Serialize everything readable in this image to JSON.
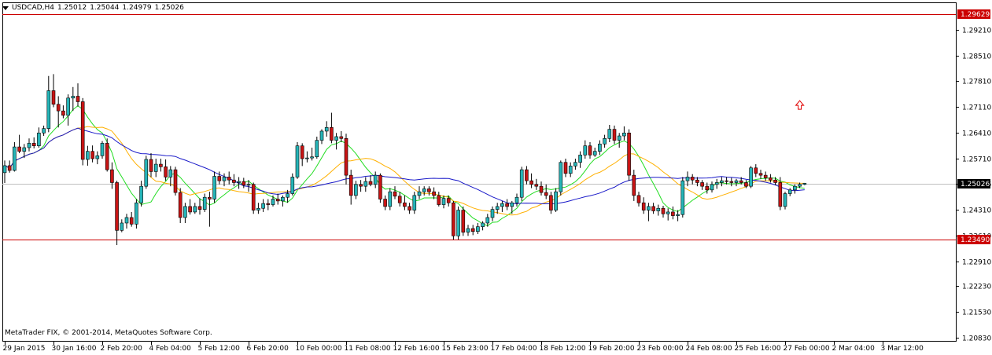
{
  "header": {
    "symbol": "USDCAD,H4",
    "open": "1.25012",
    "high": "1.25044",
    "low": "1.24979",
    "close": "1.25026"
  },
  "copyright": "MetaTrader FIX, © 2001-2014, MetaQuotes Software Corp.",
  "colors": {
    "bull": "#26b5b8",
    "bear": "#c81414",
    "ma_fast": "#22dd22",
    "ma_mid": "#ffb000",
    "ma_slow": "#1818c8",
    "level_line": "#cc0000",
    "arrow": "#e00000"
  },
  "chart_data": {
    "type": "candlestick",
    "symbol": "USDCAD",
    "timeframe": "H4",
    "y_range": [
      1.2083,
      1.2991
    ],
    "price_ticks": [
      "1.29210",
      "1.28510",
      "1.27810",
      "1.27110",
      "1.26410",
      "1.25710",
      "1.25026",
      "1.24310",
      "1.23610",
      "1.22910",
      "1.22230",
      "1.21530",
      "1.20830"
    ],
    "price_tick_values": [
      1.2921,
      1.2851,
      1.2781,
      1.2711,
      1.2641,
      1.2571,
      1.25026,
      1.2431,
      1.2361,
      1.2291,
      1.2223,
      1.2153,
      1.2083
    ],
    "time_labels": [
      "29 Jan 2015",
      "30 Jan 16:00",
      "2 Feb 20:00",
      "4 Feb 04:00",
      "5 Feb 12:00",
      "6 Feb 20:00",
      "10 Feb 00:00",
      "11 Feb 08:00",
      "12 Feb 16:00",
      "15 Feb 23:00",
      "17 Feb 04:00",
      "18 Feb 12:00",
      "19 Feb 20:00",
      "23 Feb 00:00",
      "24 Feb 08:00",
      "25 Feb 16:00",
      "27 Feb 00:00",
      "2 Mar 04:00",
      "3 Mar 12:00"
    ],
    "time_label_bars": [
      0,
      10,
      20,
      30,
      40,
      50,
      60,
      70,
      80,
      90,
      100,
      110,
      120,
      130,
      140,
      150,
      160,
      170,
      180
    ],
    "current_price": 1.25026,
    "current_price_label": "1.25026",
    "high_level": 1.29629,
    "high_level_label": "1.29629",
    "low_level": 1.2349,
    "low_level_label": "1.23490",
    "arrow_marker": {
      "bar": 163,
      "price": 1.2715
    },
    "candles": [
      [
        1.2532,
        1.2565,
        1.2504,
        1.2551
      ],
      [
        1.2551,
        1.2565,
        1.2532,
        1.2538
      ],
      [
        1.2538,
        1.2615,
        1.2535,
        1.2602
      ],
      [
        1.2602,
        1.2635,
        1.2585,
        1.259
      ],
      [
        1.259,
        1.261,
        1.2572,
        1.26
      ],
      [
        1.26,
        1.2625,
        1.259,
        1.2612
      ],
      [
        1.2612,
        1.2628,
        1.2598,
        1.2605
      ],
      [
        1.2605,
        1.2655,
        1.26,
        1.264
      ],
      [
        1.264,
        1.266,
        1.2632,
        1.2652
      ],
      [
        1.2652,
        1.2795,
        1.2642,
        1.2755
      ],
      [
        1.2755,
        1.28,
        1.271,
        1.2718
      ],
      [
        1.2718,
        1.274,
        1.2655,
        1.27
      ],
      [
        1.27,
        1.2715,
        1.268,
        1.2688
      ],
      [
        1.2688,
        1.2745,
        1.266,
        1.2735
      ],
      [
        1.2735,
        1.2765,
        1.27,
        1.274
      ],
      [
        1.274,
        1.2775,
        1.2712,
        1.2725
      ],
      [
        1.2725,
        1.2735,
        1.2552,
        1.2568
      ],
      [
        1.2568,
        1.2605,
        1.2551,
        1.259
      ],
      [
        1.259,
        1.2606,
        1.256,
        1.257
      ],
      [
        1.257,
        1.259,
        1.2555,
        1.2578
      ],
      [
        1.2578,
        1.2618,
        1.257,
        1.2612
      ],
      [
        1.2612,
        1.2625,
        1.2535,
        1.254
      ],
      [
        1.254,
        1.256,
        1.2488,
        1.2505
      ],
      [
        1.2505,
        1.251,
        1.2335,
        1.2375
      ],
      [
        1.2375,
        1.2405,
        1.237,
        1.2395
      ],
      [
        1.2395,
        1.242,
        1.238,
        1.241
      ],
      [
        1.241,
        1.2425,
        1.2385,
        1.2392
      ],
      [
        1.2392,
        1.246,
        1.238,
        1.245
      ],
      [
        1.245,
        1.251,
        1.244,
        1.2495
      ],
      [
        1.2495,
        1.2578,
        1.2488,
        1.2568
      ],
      [
        1.2568,
        1.2585,
        1.252,
        1.2535
      ],
      [
        1.2535,
        1.257,
        1.252,
        1.2555
      ],
      [
        1.2555,
        1.257,
        1.2535,
        1.2548
      ],
      [
        1.2548,
        1.2568,
        1.251,
        1.252
      ],
      [
        1.252,
        1.255,
        1.2495,
        1.254
      ],
      [
        1.254,
        1.2548,
        1.247,
        1.2478
      ],
      [
        1.2478,
        1.249,
        1.2395,
        1.241
      ],
      [
        1.241,
        1.245,
        1.2395,
        1.244
      ],
      [
        1.244,
        1.246,
        1.2418,
        1.2425
      ],
      [
        1.2425,
        1.245,
        1.242,
        1.244
      ],
      [
        1.244,
        1.2462,
        1.2418,
        1.2432
      ],
      [
        1.2432,
        1.2475,
        1.2425,
        1.2465
      ],
      [
        1.2465,
        1.248,
        1.2385,
        1.246
      ],
      [
        1.246,
        1.2535,
        1.245,
        1.2522
      ],
      [
        1.2522,
        1.2535,
        1.25,
        1.251
      ],
      [
        1.251,
        1.253,
        1.2495,
        1.252
      ],
      [
        1.252,
        1.2535,
        1.25,
        1.2512
      ],
      [
        1.2512,
        1.2528,
        1.2495,
        1.2505
      ],
      [
        1.2505,
        1.252,
        1.2488,
        1.2508
      ],
      [
        1.2508,
        1.2518,
        1.249,
        1.2498
      ],
      [
        1.2498,
        1.2512,
        1.248,
        1.25
      ],
      [
        1.25,
        1.2505,
        1.242,
        1.243
      ],
      [
        1.243,
        1.245,
        1.242,
        1.2435
      ],
      [
        1.2435,
        1.246,
        1.2425,
        1.2448
      ],
      [
        1.2448,
        1.246,
        1.243,
        1.2445
      ],
      [
        1.2445,
        1.247,
        1.244,
        1.246
      ],
      [
        1.246,
        1.2475,
        1.2445,
        1.2455
      ],
      [
        1.2455,
        1.247,
        1.244,
        1.2465
      ],
      [
        1.2465,
        1.2485,
        1.245,
        1.2475
      ],
      [
        1.2475,
        1.253,
        1.247,
        1.252
      ],
      [
        1.252,
        1.2615,
        1.2515,
        1.2605
      ],
      [
        1.2605,
        1.2612,
        1.255,
        1.257
      ],
      [
        1.257,
        1.259,
        1.256,
        1.2572
      ],
      [
        1.2572,
        1.26,
        1.2565,
        1.2575
      ],
      [
        1.2575,
        1.263,
        1.257,
        1.262
      ],
      [
        1.262,
        1.265,
        1.261,
        1.2645
      ],
      [
        1.2645,
        1.2672,
        1.263,
        1.2655
      ],
      [
        1.2655,
        1.2695,
        1.2612,
        1.262
      ],
      [
        1.262,
        1.264,
        1.2595,
        1.263
      ],
      [
        1.263,
        1.2645,
        1.2615,
        1.2625
      ],
      [
        1.2625,
        1.2638,
        1.25,
        1.2525
      ],
      [
        1.2525,
        1.254,
        1.2445,
        1.247
      ],
      [
        1.247,
        1.251,
        1.246,
        1.25
      ],
      [
        1.25,
        1.2512,
        1.248,
        1.2495
      ],
      [
        1.2495,
        1.252,
        1.248,
        1.2508
      ],
      [
        1.2508,
        1.2525,
        1.2495,
        1.25
      ],
      [
        1.25,
        1.2535,
        1.249,
        1.2525
      ],
      [
        1.2525,
        1.253,
        1.245,
        1.246
      ],
      [
        1.246,
        1.247,
        1.243,
        1.244
      ],
      [
        1.244,
        1.249,
        1.243,
        1.248
      ],
      [
        1.248,
        1.2495,
        1.246,
        1.2468
      ],
      [
        1.2468,
        1.248,
        1.244,
        1.245
      ],
      [
        1.245,
        1.247,
        1.243,
        1.244
      ],
      [
        1.244,
        1.245,
        1.242,
        1.243
      ],
      [
        1.243,
        1.248,
        1.242,
        1.247
      ],
      [
        1.247,
        1.2495,
        1.246,
        1.248
      ],
      [
        1.248,
        1.2495,
        1.247,
        1.2488
      ],
      [
        1.2488,
        1.2495,
        1.247,
        1.248
      ],
      [
        1.248,
        1.2492,
        1.246,
        1.247
      ],
      [
        1.247,
        1.248,
        1.244,
        1.2445
      ],
      [
        1.2445,
        1.247,
        1.2435,
        1.2462
      ],
      [
        1.2462,
        1.247,
        1.244,
        1.245
      ],
      [
        1.245,
        1.2455,
        1.235,
        1.236
      ],
      [
        1.236,
        1.244,
        1.235,
        1.243
      ],
      [
        1.243,
        1.244,
        1.236,
        1.237
      ],
      [
        1.237,
        1.239,
        1.236,
        1.238
      ],
      [
        1.238,
        1.239,
        1.2362,
        1.2372
      ],
      [
        1.2372,
        1.2395,
        1.2365,
        1.2385
      ],
      [
        1.2385,
        1.24,
        1.2375,
        1.2395
      ],
      [
        1.2395,
        1.242,
        1.2385,
        1.241
      ],
      [
        1.241,
        1.244,
        1.24,
        1.2432
      ],
      [
        1.2432,
        1.245,
        1.242,
        1.244
      ],
      [
        1.244,
        1.2455,
        1.2425,
        1.2448
      ],
      [
        1.2448,
        1.246,
        1.243,
        1.244
      ],
      [
        1.244,
        1.2455,
        1.242,
        1.245
      ],
      [
        1.245,
        1.2475,
        1.244,
        1.2465
      ],
      [
        1.2465,
        1.2548,
        1.2455,
        1.254
      ],
      [
        1.254,
        1.255,
        1.25,
        1.251
      ],
      [
        1.251,
        1.253,
        1.249,
        1.25
      ],
      [
        1.25,
        1.2515,
        1.2485,
        1.2495
      ],
      [
        1.2495,
        1.2508,
        1.247,
        1.2478
      ],
      [
        1.2478,
        1.25,
        1.246,
        1.247
      ],
      [
        1.247,
        1.248,
        1.242,
        1.243
      ],
      [
        1.243,
        1.249,
        1.2425,
        1.248
      ],
      [
        1.248,
        1.2565,
        1.247,
        1.256
      ],
      [
        1.256,
        1.257,
        1.252,
        1.253
      ],
      [
        1.253,
        1.256,
        1.252,
        1.255
      ],
      [
        1.255,
        1.257,
        1.254,
        1.256
      ],
      [
        1.256,
        1.259,
        1.2545,
        1.258
      ],
      [
        1.258,
        1.262,
        1.257,
        1.2605
      ],
      [
        1.2605,
        1.2615,
        1.257,
        1.258
      ],
      [
        1.258,
        1.26,
        1.2575,
        1.259
      ],
      [
        1.259,
        1.262,
        1.258,
        1.261
      ],
      [
        1.261,
        1.2635,
        1.26,
        1.2625
      ],
      [
        1.2625,
        1.2662,
        1.2615,
        1.265
      ],
      [
        1.265,
        1.266,
        1.261,
        1.262
      ],
      [
        1.262,
        1.264,
        1.26,
        1.2632
      ],
      [
        1.2632,
        1.2658,
        1.262,
        1.264
      ],
      [
        1.264,
        1.265,
        1.251,
        1.2525
      ],
      [
        1.2525,
        1.254,
        1.2455,
        1.247
      ],
      [
        1.247,
        1.248,
        1.244,
        1.245
      ],
      [
        1.245,
        1.2465,
        1.242,
        1.243
      ],
      [
        1.243,
        1.245,
        1.24,
        1.244
      ],
      [
        1.244,
        1.245,
        1.242,
        1.2428
      ],
      [
        1.2428,
        1.2445,
        1.2415,
        1.2435
      ],
      [
        1.2435,
        1.2442,
        1.241,
        1.242
      ],
      [
        1.242,
        1.2435,
        1.2402,
        1.2425
      ],
      [
        1.2425,
        1.244,
        1.2405,
        1.2415
      ],
      [
        1.2415,
        1.243,
        1.24,
        1.2418
      ],
      [
        1.2418,
        1.252,
        1.241,
        1.251
      ],
      [
        1.251,
        1.2535,
        1.2495,
        1.252
      ],
      [
        1.252,
        1.2528,
        1.25,
        1.2512
      ],
      [
        1.2512,
        1.252,
        1.2495,
        1.2505
      ],
      [
        1.2505,
        1.2512,
        1.2485,
        1.2495
      ],
      [
        1.2495,
        1.2505,
        1.2475,
        1.2485
      ],
      [
        1.2485,
        1.2508,
        1.2478,
        1.25
      ],
      [
        1.25,
        1.2515,
        1.2488,
        1.2505
      ],
      [
        1.2505,
        1.252,
        1.2495,
        1.251
      ],
      [
        1.251,
        1.252,
        1.25,
        1.2508
      ],
      [
        1.2508,
        1.2518,
        1.2495,
        1.2505
      ],
      [
        1.2505,
        1.2515,
        1.2495,
        1.251
      ],
      [
        1.251,
        1.252,
        1.25,
        1.2505
      ],
      [
        1.2505,
        1.2512,
        1.249,
        1.2495
      ],
      [
        1.2495,
        1.255,
        1.249,
        1.2545
      ],
      [
        1.2545,
        1.2555,
        1.252,
        1.253
      ],
      [
        1.253,
        1.254,
        1.2515,
        1.2525
      ],
      [
        1.2525,
        1.2535,
        1.251,
        1.2518
      ],
      [
        1.2518,
        1.2528,
        1.2505,
        1.2512
      ],
      [
        1.2512,
        1.252,
        1.2498,
        1.2505
      ],
      [
        1.2505,
        1.252,
        1.243,
        1.244
      ],
      [
        1.244,
        1.248,
        1.2432,
        1.2475
      ],
      [
        1.2475,
        1.249,
        1.2468,
        1.2485
      ],
      [
        1.2485,
        1.25,
        1.2475,
        1.2495
      ],
      [
        1.2495,
        1.2505,
        1.249,
        1.25
      ],
      [
        1.25,
        1.2504,
        1.2498,
        1.2503
      ]
    ]
  }
}
